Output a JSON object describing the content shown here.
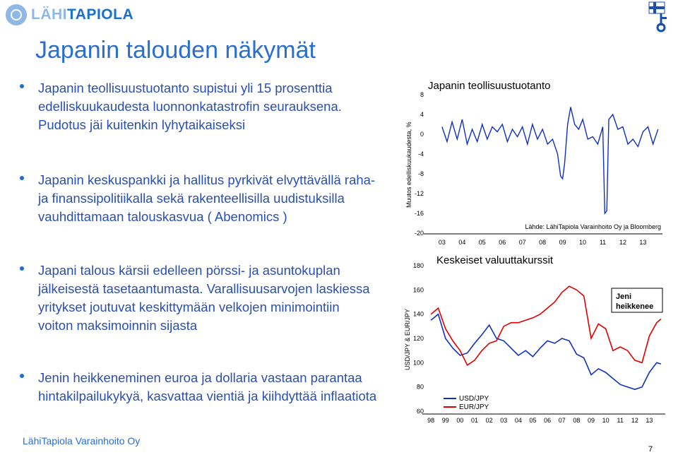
{
  "logo": {
    "part1": "LÄHI",
    "part2": "TAPIOLA"
  },
  "title": "Japanin talouden näkymät",
  "bullets": [
    "Japanin teollisuustuotanto supistui yli 15 prosenttia edelliskuukaudesta luonnonkatastrofin seurauksena. Pudotus jäi kuitenkin lyhytaikaiseksi",
    "Japanin keskuspankki ja hallitus pyrkivät elvyttävällä raha- ja finanssipolitiikalla sekä rakenteellisilla uudistuksilla vauhdittamaan talouskasvua ( Abenomics )",
    "Japani talous kärsii edelleen pörssi- ja asuntokuplan jälkeisestä tasetaantumasta. Varallisuusarvojen laskiessa yritykset joutuvat keskittymään velkojen minimointiin voiton maksimoinnin sijasta",
    "Jenin heikkeneminen euroa ja dollaria vastaan parantaa hintakilpailukykyä, kasvattaa vientiä ja kiihdyttää inflaatiota"
  ],
  "footer": "LähiTapiola Varainhoito Oy",
  "page_number": "7",
  "colors": {
    "accent": "#1a6fd0",
    "title": "#2a6ed0",
    "usd_line": "#1030c0",
    "eur_line": "#e00000"
  },
  "chart_data": [
    {
      "type": "line",
      "title": "Japanin teollisuustuotanto",
      "ylabel": "Muutos edelliskuukaudesta, %",
      "xlabel": "",
      "x_ticks": [
        "03",
        "04",
        "05",
        "06",
        "07",
        "08",
        "09",
        "10",
        "11",
        "12",
        "13"
      ],
      "y_ticks": [
        "8",
        "4",
        "0",
        "-4",
        "-8",
        "-12",
        "-16",
        "-20"
      ],
      "ylim": [
        -20,
        8
      ],
      "x": [
        2003.0,
        2003.25,
        2003.5,
        2003.75,
        2004.0,
        2004.25,
        2004.5,
        2004.75,
        2005.0,
        2005.25,
        2005.5,
        2005.75,
        2006.0,
        2006.25,
        2006.5,
        2006.75,
        2007.0,
        2007.25,
        2007.5,
        2007.75,
        2008.0,
        2008.25,
        2008.5,
        2008.75,
        2008.9,
        2009.0,
        2009.1,
        2009.25,
        2009.4,
        2009.6,
        2009.8,
        2010.0,
        2010.25,
        2010.5,
        2010.75,
        2011.0,
        2011.1,
        2011.2,
        2011.3,
        2011.5,
        2011.75,
        2012.0,
        2012.25,
        2012.5,
        2012.75,
        2013.0,
        2013.25,
        2013.5,
        2013.75
      ],
      "series": [
        {
          "values": [
            1.5,
            -1.5,
            2.5,
            -1.0,
            3.0,
            -2.0,
            1.0,
            -1.5,
            2.0,
            -1.0,
            1.5,
            0.5,
            2.0,
            -1.5,
            1.0,
            -0.5,
            1.5,
            -2.0,
            2.0,
            -1.0,
            1.0,
            -2.0,
            -1.0,
            -4.0,
            -8.5,
            -9.0,
            -6.0,
            2.0,
            5.5,
            2.0,
            1.0,
            3.0,
            -1.0,
            -0.5,
            -2.0,
            1.5,
            -16.0,
            -15.5,
            3.0,
            4.0,
            1.0,
            1.5,
            -2.0,
            -1.0,
            -2.5,
            0.5,
            1.5,
            -2.0,
            1.0
          ]
        }
      ],
      "annotation": "Lähde: LähiTapiola Varainhoito Oy ja Bloomberg"
    },
    {
      "type": "line",
      "title": "Keskeiset valuuttakurssit",
      "ylabel": "USD/JPY & EUR/JPY",
      "xlabel": "",
      "x_ticks": [
        "98",
        "99",
        "00",
        "01",
        "02",
        "03",
        "04",
        "05",
        "06",
        "07",
        "08",
        "09",
        "10",
        "11",
        "12",
        "13"
      ],
      "y_ticks": [
        "180",
        "160",
        "140",
        "120",
        "100",
        "80",
        "60"
      ],
      "ylim": [
        60,
        180
      ],
      "x": [
        1998.0,
        1998.5,
        1999.0,
        1999.5,
        2000.0,
        2000.5,
        2001.0,
        2001.5,
        2002.0,
        2002.5,
        2003.0,
        2003.5,
        2004.0,
        2004.5,
        2005.0,
        2005.5,
        2006.0,
        2006.5,
        2007.0,
        2007.5,
        2008.0,
        2008.5,
        2009.0,
        2009.5,
        2010.0,
        2010.5,
        2011.0,
        2011.5,
        2012.0,
        2012.5,
        2013.0,
        2013.5,
        2013.8
      ],
      "series": [
        {
          "name": "USD/JPY",
          "values": [
            135,
            140,
            120,
            112,
            106,
            108,
            116,
            123,
            131,
            120,
            118,
            112,
            106,
            110,
            105,
            112,
            118,
            116,
            120,
            118,
            107,
            104,
            90,
            95,
            92,
            87,
            82,
            80,
            78,
            80,
            92,
            100,
            99
          ]
        },
        {
          "name": "EUR/JPY",
          "values": [
            140,
            145,
            128,
            118,
            110,
            98,
            102,
            110,
            116,
            118,
            130,
            133,
            133,
            135,
            137,
            140,
            145,
            150,
            158,
            163,
            160,
            155,
            120,
            132,
            128,
            110,
            113,
            110,
            102,
            100,
            122,
            133,
            136
          ]
        }
      ],
      "annotation": "Jeni heikkenee",
      "legend": "bottom-left"
    }
  ]
}
